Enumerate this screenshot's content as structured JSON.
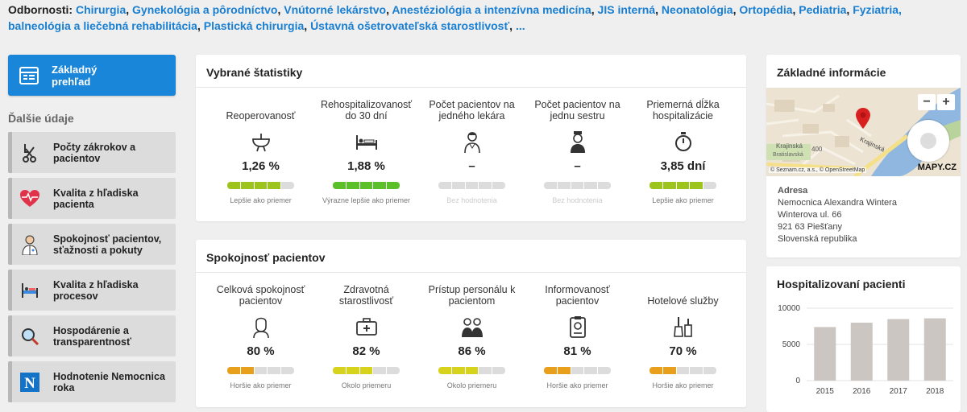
{
  "specialties": {
    "label": "Odbornosti:",
    "items": [
      "Chirurgia",
      "Gynekológia a pôrodníctvo",
      "Vnútorné lekárstvo",
      "Anestéziológia a intenzívna medicína",
      "JIS interná",
      "Neonatológia",
      "Ortopédia",
      "Pediatria",
      "Fyziatria, balneológia a liečebná rehabilitácia",
      "Plastická chirurgia",
      "Ústavná ošetrovateľská starostlivosť"
    ],
    "more": "..."
  },
  "sidebar": {
    "main_button": "Základný prehľad",
    "section_title": "Ďalšie údaje",
    "items": [
      {
        "label": "Počty zákrokov a pacientov",
        "icon": "surgery-tools-icon"
      },
      {
        "label": "Kvalita z hľadiska pacienta",
        "icon": "heart-pulse-icon"
      },
      {
        "label": "Spokojnosť pacientov, sťažnosti a pokuty",
        "icon": "doctor-icon"
      },
      {
        "label": "Kvalita z hľadiska procesov",
        "icon": "hospital-bed-icon"
      },
      {
        "label": "Hospodárenie a transparentnosť",
        "icon": "magnifier-icon"
      },
      {
        "label": "Hodnotenie Nemocnica roka",
        "icon": "n-logo-icon"
      }
    ]
  },
  "stats": {
    "title": "Vybrané štatistiky",
    "items": [
      {
        "label": "Reoperovanosť",
        "value": "1,26 %",
        "rating": "Lepšie ako priemer",
        "filled": 4,
        "color": "#9dc41d"
      },
      {
        "label": "Rehospitalizovanosť do 30 dní",
        "value": "1,88 %",
        "rating": "Výrazne lepšie ako priemer",
        "filled": 5,
        "color": "#5bbf2a"
      },
      {
        "label": "Počet pacientov na jedného lekára",
        "value": "–",
        "rating": "Bez hodnotenia",
        "filled": 0,
        "color": "#dcdcdc"
      },
      {
        "label": "Počet pacientov na jednu sestru",
        "value": "–",
        "rating": "Bez hodnotenia",
        "filled": 0,
        "color": "#dcdcdc"
      },
      {
        "label": "Priemerná dĺžka hospitalizácie",
        "value": "3,85 dní",
        "rating": "Lepšie ako priemer",
        "filled": 4,
        "color": "#9dc41d"
      }
    ]
  },
  "satisfaction": {
    "title": "Spokojnosť pacientov",
    "items": [
      {
        "label": "Celková spokojnosť pacientov",
        "value": "80 %",
        "rating": "Horšie ako priemer",
        "filled": 2,
        "color": "#e8a01c"
      },
      {
        "label": "Zdravotná starostlivosť",
        "value": "82 %",
        "rating": "Okolo priemeru",
        "filled": 3,
        "color": "#d7d21b"
      },
      {
        "label": "Prístup personálu k pacientom",
        "value": "86 %",
        "rating": "Okolo priemeru",
        "filled": 3,
        "color": "#d7d21b"
      },
      {
        "label": "Informovanosť pacientov",
        "value": "81 %",
        "rating": "Horšie ako priemer",
        "filled": 2,
        "color": "#e8a01c"
      },
      {
        "label": "Hotelové služby",
        "value": "70 %",
        "rating": "Horšie ako priemer",
        "filled": 2,
        "color": "#e8a01c"
      }
    ]
  },
  "info": {
    "title": "Základné informácie",
    "map": {
      "zoom_in": "+",
      "zoom_out": "−",
      "street1": "Krajinská",
      "street2": "Krajinská",
      "street3": "Bratislavská",
      "number": "400",
      "attribution": "© Seznam.cz, a.s., © OpenStreetMap",
      "brand": "MAPY.CZ"
    },
    "address_heading": "Adresa",
    "address": [
      "Nemocnica Alexandra Wintera",
      "Winterova ul. 66",
      "921 63 Piešťany",
      "Slovenská republika"
    ]
  },
  "hospitalized": {
    "title": "Hospitalizovaní pacienti",
    "chart_data": {
      "type": "bar",
      "categories": [
        "2015",
        "2016",
        "2017",
        "2018"
      ],
      "values": [
        7400,
        8000,
        8500,
        8600
      ],
      "title": "Hospitalizovaní pacienti",
      "yticks": [
        "0",
        "5000",
        "10000"
      ],
      "ylim": [
        0,
        10000
      ],
      "grid": true,
      "color": "#cbc6c2"
    }
  }
}
